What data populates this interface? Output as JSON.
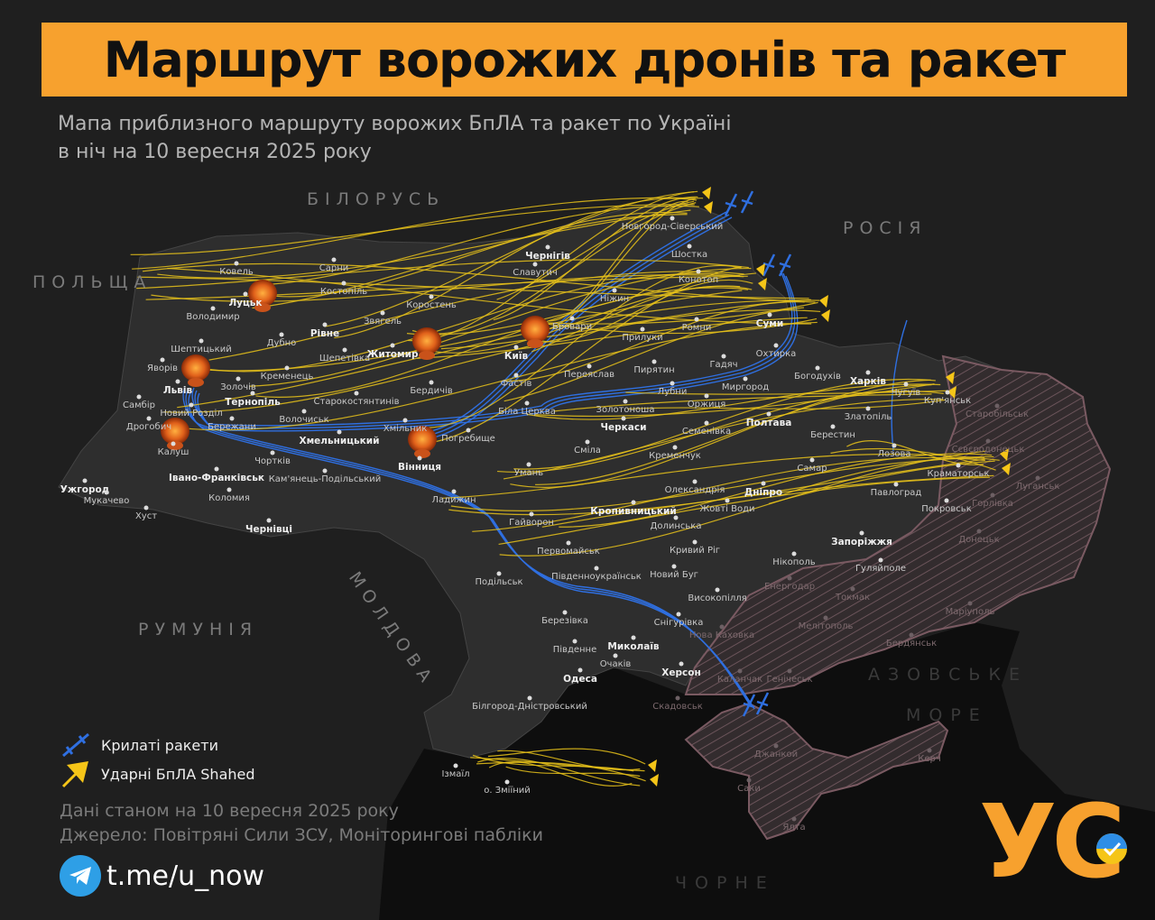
{
  "header": {
    "title": "Маршрут ворожих дронів та ракет",
    "subtitle": "Мапа приблизного маршруту ворожих БпЛА та ракет по Україні в ніч на 10 вересня 2025 року"
  },
  "countries": [
    "БІЛОРУСЬ",
    "РОСІЯ",
    "ПОЛЬЩА",
    "МОЛДОВА",
    "РУМУНІЯ"
  ],
  "seas": [
    "АЗОВСЬКЕ",
    "МОРЕ",
    "ЧОРНЕ",
    "МОРЕ"
  ],
  "cities": [
    "Ковель",
    "Сарни",
    "Луцьк",
    "Костопіль",
    "Володимир",
    "Рівне",
    "Звягель",
    "Коростень",
    "Дубно",
    "Шептицький",
    "Житомир",
    "Шепетівка",
    "Яворів",
    "Кременець",
    "Львів",
    "Золочів",
    "Бердичів",
    "Тернопіль",
    "Старокостянтинів",
    "Самбір",
    "Новий Розділ",
    "Волочиськ",
    "Дрогобич",
    "Бережани",
    "Хмільник",
    "Погребище",
    "Хмельницький",
    "Калуш",
    "Вінниця",
    "Чортків",
    "Кам'янець-Подільський",
    "Івано-Франківськ",
    "Коломия",
    "Ужгород",
    "Мукачево",
    "Хуст",
    "Чернівці",
    "Ладижин",
    "Умань",
    "Гайворон",
    "Первомайськ",
    "Подільськ",
    "Південноукраїнськ",
    "Новий Буг",
    "Кривий Ріг",
    "Нікополь",
    "Високопілля",
    "Березівка",
    "Снігурівка",
    "Миколаїв",
    "Південне",
    "Очаків",
    "Одеса",
    "Херсон",
    "Білгород-Дністровський",
    "Ізмаїл",
    "о. Зміїний",
    "Кропивницький",
    "Олександрія",
    "Жовті Води",
    "Долинська",
    "Дніпро",
    "Самар",
    "Павлоград",
    "Запоріжжя",
    "Гуляйполе",
    "Покровськ",
    "Краматорськ",
    "Лозова",
    "Берестин",
    "Златопіль",
    "Харків",
    "Чугуїв",
    "Куп'янськ",
    "Богодухів",
    "Охтирка",
    "Гадяч",
    "Миргород",
    "Лубни",
    "Оржиця",
    "Полтава",
    "Семенівка",
    "Кременчук",
    "Черкаси",
    "Сміла",
    "Золотоноша",
    "Переяслав",
    "Пирятин",
    "Біла Церква",
    "Фастів",
    "Київ",
    "Бровари",
    "Прилуки",
    "Ромни",
    "Суми",
    "Конотоп",
    "Шостка",
    "Новгород-Сіверський",
    "Ніжин",
    "Чернігів",
    "Славутич",
    "Нова Каховка",
    "Скадовськ",
    "Старобільськ",
    "Сєвєродонецьк",
    "Луганськ",
    "Горлівка",
    "Донецьк",
    "Маріуполь",
    "Бердянськ",
    "Мелітополь",
    "Токмак",
    "Енергодар",
    "Генічеськ",
    "Каланчак",
    "Джанкой",
    "Саки",
    "Ялта",
    "Керч"
  ],
  "legend": {
    "missiles": "Крилаті ракети",
    "drones": "Ударні БпЛА Shahed"
  },
  "notes": {
    "date": "Дані станом на 10 вересня 2025 року",
    "source": "Джерело: Повітряні Сили ЗСУ, Моніторингові пабліки"
  },
  "telegram": {
    "link": "t.me/u_now",
    "icon": "telegram-icon"
  },
  "logo": {
    "text": "УС"
  },
  "colors": {
    "accent": "#f7a12e",
    "drone": "#e8c21a",
    "missile": "#2f6fe0",
    "occupied": "#7a5a62",
    "strike": "#e8641a"
  }
}
